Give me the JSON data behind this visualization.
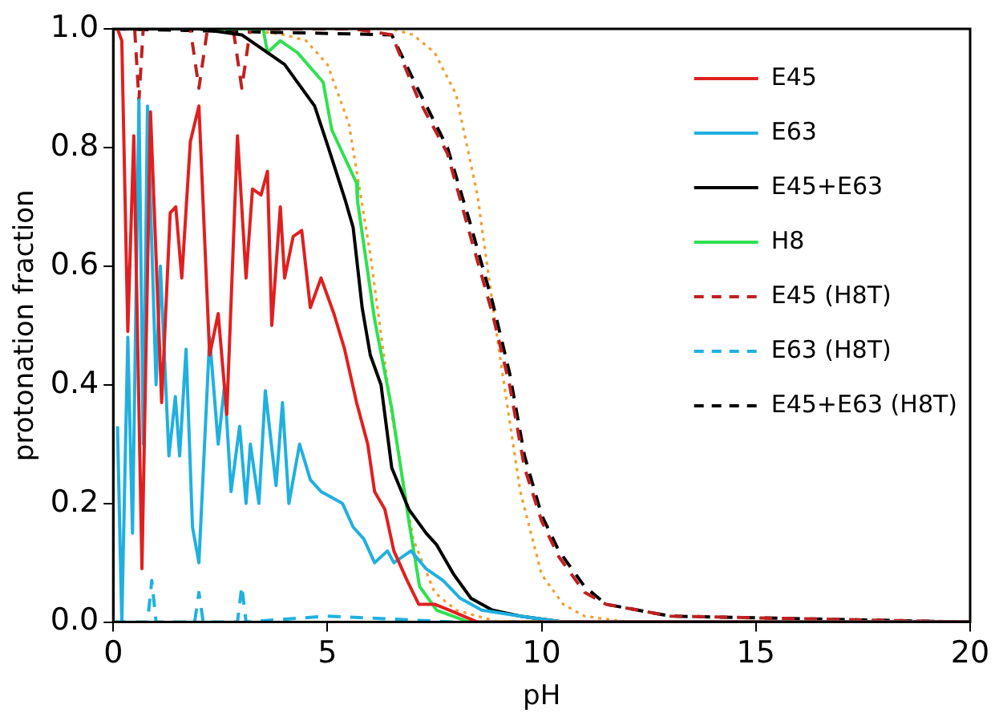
{
  "chart_data": {
    "type": "line",
    "xlabel": "pH",
    "ylabel": "protonation fraction",
    "xlim": [
      0,
      20
    ],
    "ylim": [
      0,
      1
    ],
    "xticks": [
      0,
      5,
      10,
      15,
      20
    ],
    "yticks": [
      {
        "value": 0,
        "label": "0.0"
      },
      {
        "value": 0.2,
        "label": "0.2"
      },
      {
        "value": 0.4,
        "label": "0.4"
      },
      {
        "value": 0.6,
        "label": "0.6"
      },
      {
        "value": 0.8,
        "label": "0.8"
      },
      {
        "value": 1,
        "label": "1.0"
      }
    ],
    "grid": false,
    "legend": "top right",
    "marker": "none",
    "series": [
      {
        "name": "E45",
        "color": "#e02020",
        "line_style": "solid",
        "x": [
          0.1,
          0.2,
          0.34,
          0.48,
          0.67,
          0.87,
          1.13,
          1.33,
          1.46,
          1.6,
          1.8,
          2.0,
          2.25,
          2.45,
          2.65,
          2.9,
          3.1,
          3.25,
          3.45,
          3.6,
          3.7,
          3.9,
          4.0,
          4.2,
          4.4,
          4.6,
          4.85,
          5.15,
          5.4,
          5.68,
          5.94,
          6.1,
          6.34,
          6.55,
          6.86,
          7.13,
          7.5,
          7.85,
          8.5,
          20
        ],
        "values": [
          1.0,
          0.98,
          0.49,
          0.82,
          0.09,
          0.86,
          0.37,
          0.69,
          0.7,
          0.58,
          0.81,
          0.87,
          0.45,
          0.52,
          0.35,
          0.82,
          0.58,
          0.73,
          0.72,
          0.76,
          0.5,
          0.7,
          0.58,
          0.65,
          0.66,
          0.53,
          0.58,
          0.52,
          0.46,
          0.37,
          0.3,
          0.22,
          0.19,
          0.12,
          0.07,
          0.03,
          0.03,
          0.02,
          0.0,
          0.0
        ]
      },
      {
        "name": "E63",
        "color": "#20b0e0",
        "line_style": "solid",
        "x": [
          0.1,
          0.2,
          0.34,
          0.45,
          0.6,
          0.7,
          0.8,
          1.0,
          1.1,
          1.3,
          1.45,
          1.55,
          1.7,
          1.85,
          2.0,
          2.25,
          2.45,
          2.6,
          2.75,
          2.95,
          3.1,
          3.2,
          3.4,
          3.55,
          3.8,
          3.95,
          4.1,
          4.35,
          4.6,
          4.85,
          5.1,
          5.35,
          5.6,
          5.85,
          6.1,
          6.4,
          6.55,
          6.95,
          7.3,
          7.7,
          8.1,
          8.6,
          9.5,
          10.5,
          15,
          20
        ],
        "values": [
          0.33,
          0.0,
          0.48,
          0.15,
          0.88,
          0.3,
          0.87,
          0.4,
          0.6,
          0.28,
          0.38,
          0.28,
          0.46,
          0.16,
          0.1,
          0.48,
          0.3,
          0.4,
          0.22,
          0.33,
          0.2,
          0.3,
          0.2,
          0.39,
          0.23,
          0.37,
          0.2,
          0.3,
          0.24,
          0.22,
          0.21,
          0.2,
          0.16,
          0.14,
          0.1,
          0.12,
          0.1,
          0.12,
          0.09,
          0.07,
          0.04,
          0.02,
          0.01,
          0.0,
          0.0,
          0.0
        ]
      },
      {
        "name": "E45+E63",
        "color": "#000000",
        "line_style": "solid",
        "x": [
          0,
          2,
          3,
          4,
          4.3,
          4.7,
          5.02,
          5.42,
          5.6,
          5.81,
          6.0,
          6.25,
          6.5,
          6.9,
          7.3,
          7.55,
          7.95,
          8.35,
          8.85,
          9.5,
          10.5,
          15,
          20
        ],
        "values": [
          1.0,
          1.0,
          0.99,
          0.94,
          0.91,
          0.87,
          0.8,
          0.71,
          0.665,
          0.53,
          0.45,
          0.4,
          0.26,
          0.19,
          0.15,
          0.13,
          0.08,
          0.04,
          0.02,
          0.01,
          0.0,
          0.0,
          0.0
        ]
      },
      {
        "name": "H8",
        "color": "#30e050",
        "line_style": "solid",
        "x": [
          0,
          3.5,
          3.6,
          3.9,
          4.3,
          4.9,
          5.1,
          5.68,
          5.7,
          6.1,
          6.5,
          6.9,
          7.15,
          7.55,
          8.3,
          15,
          20
        ],
        "values": [
          1.0,
          1.0,
          0.96,
          0.98,
          0.96,
          0.91,
          0.83,
          0.74,
          0.71,
          0.51,
          0.36,
          0.17,
          0.06,
          0.02,
          0.0,
          0.0,
          0.0
        ]
      },
      {
        "name": "E45 (H8T)",
        "color": "#c02020",
        "line_style": "dashed",
        "x": [
          0,
          0.5,
          0.6,
          0.7,
          1.8,
          2.0,
          2.2,
          2.8,
          3.0,
          3.2,
          5.6,
          6.5,
          7.1,
          7.8,
          8.3,
          8.85,
          9.25,
          9.6,
          10.0,
          10.4,
          11.0,
          11.5,
          13,
          20
        ],
        "values": [
          1.0,
          1.0,
          0.88,
          1.0,
          1.0,
          0.9,
          1.0,
          1.0,
          0.9,
          1.0,
          1.0,
          0.99,
          0.885,
          0.79,
          0.66,
          0.52,
          0.4,
          0.26,
          0.17,
          0.11,
          0.05,
          0.03,
          0.01,
          0.0
        ]
      },
      {
        "name": "E63 (H8T)",
        "color": "#20b0e0",
        "line_style": "dashed",
        "x": [
          0,
          0.8,
          0.9,
          1.0,
          1.9,
          2.0,
          2.1,
          2.9,
          3.0,
          3.1,
          5,
          8,
          12,
          20
        ],
        "values": [
          0.0,
          0.0,
          0.07,
          0.0,
          0.0,
          0.05,
          0.0,
          0.0,
          0.06,
          0.0,
          0.01,
          0.0,
          0.0,
          0.0
        ]
      },
      {
        "name": "E45+E63 (H8T)",
        "color": "#000000",
        "line_style": "dashed",
        "x": [
          0,
          6.5,
          7.1,
          7.8,
          8.3,
          8.85,
          9.25,
          9.6,
          10.0,
          10.4,
          11.0,
          11.5,
          13,
          20
        ],
        "values": [
          1.0,
          0.99,
          0.9,
          0.8,
          0.68,
          0.54,
          0.42,
          0.28,
          0.18,
          0.12,
          0.06,
          0.03,
          0.01,
          0.0
        ]
      },
      {
        "color": "#f0a030",
        "line_style": "dotted",
        "x": [
          3.0,
          4.0,
          4.5,
          5.0,
          5.5,
          6.0,
          6.5,
          7.0,
          7.5,
          8.0,
          9
        ],
        "values": [
          1.0,
          0.99,
          0.98,
          0.94,
          0.84,
          0.62,
          0.35,
          0.14,
          0.05,
          0.02,
          0.0
        ]
      },
      {
        "color": "#f0a030",
        "line_style": "dotted",
        "x": [
          6.0,
          6.5,
          7.0,
          7.5,
          8.0,
          8.5,
          9.0,
          9.5,
          10.0,
          10.5,
          11,
          12
        ],
        "values": [
          1.0,
          1.0,
          0.99,
          0.96,
          0.89,
          0.72,
          0.46,
          0.22,
          0.08,
          0.03,
          0.01,
          0.0
        ]
      }
    ]
  }
}
